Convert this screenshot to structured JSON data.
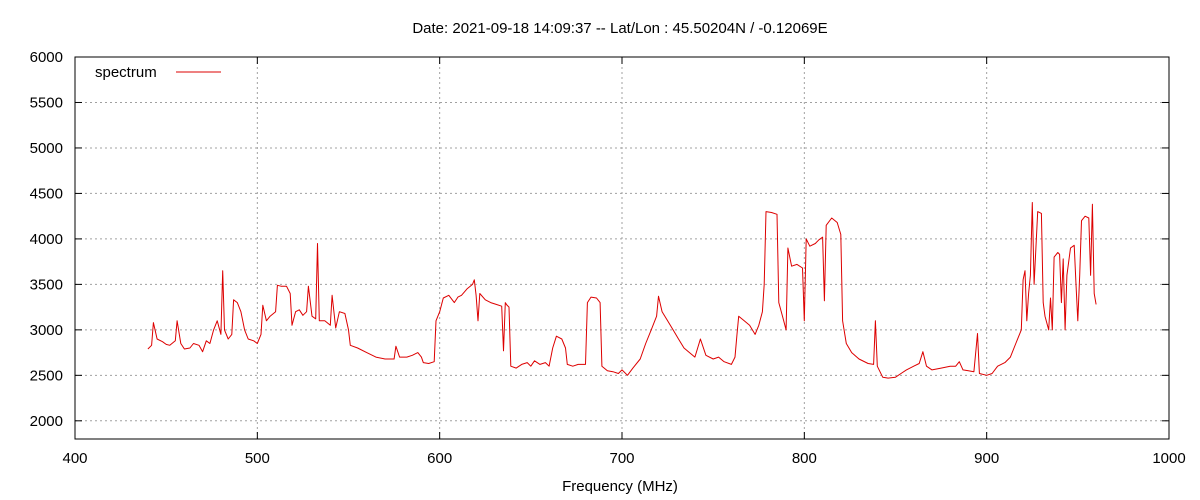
{
  "chart_data": {
    "type": "line",
    "title": "Date: 2021-09-18 14:09:37  --  Lat/Lon : 45.50204N / -0.12069E",
    "xlabel": "Frequency (MHz)",
    "ylabel": "",
    "xlim": [
      400,
      1000
    ],
    "ylim": [
      1800,
      6000
    ],
    "xticks": [
      400,
      500,
      600,
      700,
      800,
      900,
      1000
    ],
    "yticks": [
      2000,
      2500,
      3000,
      3500,
      4000,
      4500,
      5000,
      5500,
      6000
    ],
    "grid": true,
    "legend_position": "top-left",
    "series": [
      {
        "name": "spectrum",
        "color": "#dd0000",
        "points": [
          [
            440,
            2790
          ],
          [
            442,
            2830
          ],
          [
            443,
            3080
          ],
          [
            445,
            2900
          ],
          [
            448,
            2870
          ],
          [
            450,
            2840
          ],
          [
            452,
            2830
          ],
          [
            455,
            2880
          ],
          [
            456,
            3100
          ],
          [
            458,
            2850
          ],
          [
            460,
            2790
          ],
          [
            463,
            2800
          ],
          [
            465,
            2850
          ],
          [
            468,
            2830
          ],
          [
            470,
            2760
          ],
          [
            472,
            2880
          ],
          [
            474,
            2850
          ],
          [
            476,
            3000
          ],
          [
            478,
            3100
          ],
          [
            480,
            2950
          ],
          [
            481,
            3650
          ],
          [
            482,
            3000
          ],
          [
            484,
            2900
          ],
          [
            486,
            2950
          ],
          [
            487,
            3330
          ],
          [
            489,
            3300
          ],
          [
            491,
            3200
          ],
          [
            493,
            3000
          ],
          [
            495,
            2900
          ],
          [
            498,
            2880
          ],
          [
            500,
            2850
          ],
          [
            502,
            2950
          ],
          [
            503,
            3270
          ],
          [
            505,
            3100
          ],
          [
            507,
            3150
          ],
          [
            510,
            3200
          ],
          [
            511,
            3490
          ],
          [
            513,
            3480
          ],
          [
            516,
            3480
          ],
          [
            518,
            3400
          ],
          [
            519,
            3050
          ],
          [
            521,
            3200
          ],
          [
            523,
            3220
          ],
          [
            525,
            3160
          ],
          [
            527,
            3200
          ],
          [
            528,
            3480
          ],
          [
            530,
            3150
          ],
          [
            532,
            3120
          ],
          [
            533,
            3950
          ],
          [
            534,
            3100
          ],
          [
            537,
            3100
          ],
          [
            540,
            3050
          ],
          [
            541,
            3380
          ],
          [
            543,
            3020
          ],
          [
            545,
            3200
          ],
          [
            548,
            3180
          ],
          [
            550,
            3000
          ],
          [
            551,
            2830
          ],
          [
            555,
            2800
          ],
          [
            560,
            2750
          ],
          [
            565,
            2700
          ],
          [
            570,
            2680
          ],
          [
            575,
            2680
          ],
          [
            576,
            2820
          ],
          [
            578,
            2700
          ],
          [
            582,
            2700
          ],
          [
            585,
            2720
          ],
          [
            588,
            2750
          ],
          [
            590,
            2700
          ],
          [
            591,
            2640
          ],
          [
            594,
            2630
          ],
          [
            597,
            2650
          ],
          [
            598,
            3100
          ],
          [
            600,
            3200
          ],
          [
            602,
            3350
          ],
          [
            605,
            3380
          ],
          [
            608,
            3300
          ],
          [
            610,
            3360
          ],
          [
            612,
            3380
          ],
          [
            615,
            3450
          ],
          [
            618,
            3500
          ],
          [
            619,
            3550
          ],
          [
            620,
            3380
          ],
          [
            621,
            3100
          ],
          [
            622,
            3400
          ],
          [
            625,
            3330
          ],
          [
            628,
            3300
          ],
          [
            631,
            3280
          ],
          [
            634,
            3260
          ],
          [
            635,
            2770
          ],
          [
            636,
            3300
          ],
          [
            637,
            3270
          ],
          [
            638,
            3250
          ],
          [
            639,
            2600
          ],
          [
            642,
            2580
          ],
          [
            645,
            2620
          ],
          [
            648,
            2640
          ],
          [
            650,
            2600
          ],
          [
            652,
            2660
          ],
          [
            655,
            2620
          ],
          [
            658,
            2640
          ],
          [
            660,
            2600
          ],
          [
            662,
            2800
          ],
          [
            664,
            2930
          ],
          [
            667,
            2900
          ],
          [
            669,
            2800
          ],
          [
            670,
            2620
          ],
          [
            673,
            2600
          ],
          [
            676,
            2620
          ],
          [
            680,
            2620
          ],
          [
            681,
            3300
          ],
          [
            683,
            3360
          ],
          [
            686,
            3350
          ],
          [
            688,
            3300
          ],
          [
            689,
            2600
          ],
          [
            692,
            2550
          ],
          [
            695,
            2540
          ],
          [
            698,
            2520
          ],
          [
            700,
            2560
          ],
          [
            703,
            2500
          ],
          [
            706,
            2580
          ],
          [
            710,
            2680
          ],
          [
            713,
            2850
          ],
          [
            716,
            3000
          ],
          [
            719,
            3150
          ],
          [
            720,
            3370
          ],
          [
            722,
            3200
          ],
          [
            725,
            3100
          ],
          [
            728,
            3000
          ],
          [
            731,
            2900
          ],
          [
            734,
            2800
          ],
          [
            737,
            2750
          ],
          [
            740,
            2700
          ],
          [
            743,
            2900
          ],
          [
            746,
            2720
          ],
          [
            750,
            2680
          ],
          [
            753,
            2700
          ],
          [
            756,
            2650
          ],
          [
            760,
            2620
          ],
          [
            762,
            2700
          ],
          [
            763,
            2940
          ],
          [
            764,
            3150
          ],
          [
            767,
            3100
          ],
          [
            770,
            3050
          ],
          [
            773,
            2950
          ],
          [
            775,
            3050
          ],
          [
            777,
            3200
          ],
          [
            778,
            3500
          ],
          [
            779,
            4300
          ],
          [
            782,
            4290
          ],
          [
            785,
            4270
          ],
          [
            786,
            3300
          ],
          [
            788,
            3150
          ],
          [
            790,
            3000
          ],
          [
            791,
            3900
          ],
          [
            793,
            3700
          ],
          [
            796,
            3720
          ],
          [
            799,
            3680
          ],
          [
            800,
            3100
          ],
          [
            801,
            4000
          ],
          [
            803,
            3920
          ],
          [
            806,
            3950
          ],
          [
            808,
            3990
          ],
          [
            810,
            4020
          ],
          [
            811,
            3320
          ],
          [
            812,
            4150
          ],
          [
            815,
            4230
          ],
          [
            818,
            4180
          ],
          [
            820,
            4050
          ],
          [
            821,
            3100
          ],
          [
            823,
            2850
          ],
          [
            826,
            2750
          ],
          [
            830,
            2680
          ],
          [
            835,
            2630
          ],
          [
            838,
            2620
          ],
          [
            839,
            3100
          ],
          [
            840,
            2600
          ],
          [
            843,
            2480
          ],
          [
            846,
            2470
          ],
          [
            850,
            2480
          ],
          [
            853,
            2520
          ],
          [
            856,
            2560
          ],
          [
            860,
            2600
          ],
          [
            863,
            2630
          ],
          [
            865,
            2760
          ],
          [
            867,
            2600
          ],
          [
            870,
            2560
          ],
          [
            875,
            2580
          ],
          [
            880,
            2600
          ],
          [
            883,
            2600
          ],
          [
            885,
            2650
          ],
          [
            887,
            2560
          ],
          [
            890,
            2550
          ],
          [
            893,
            2540
          ],
          [
            895,
            2960
          ],
          [
            896,
            2520
          ],
          [
            900,
            2500
          ],
          [
            903,
            2520
          ],
          [
            906,
            2600
          ],
          [
            910,
            2640
          ],
          [
            913,
            2700
          ],
          [
            916,
            2850
          ],
          [
            919,
            3000
          ],
          [
            920,
            3550
          ],
          [
            921,
            3650
          ],
          [
            922,
            3100
          ],
          [
            923,
            3400
          ],
          [
            924,
            3600
          ],
          [
            925,
            4400
          ],
          [
            926,
            3500
          ],
          [
            927,
            3900
          ],
          [
            928,
            4300
          ],
          [
            930,
            4280
          ],
          [
            931,
            3300
          ],
          [
            932,
            3150
          ],
          [
            934,
            3000
          ],
          [
            935,
            3350
          ],
          [
            936,
            3000
          ],
          [
            937,
            3800
          ],
          [
            939,
            3850
          ],
          [
            940,
            3830
          ],
          [
            941,
            3300
          ],
          [
            942,
            3780
          ],
          [
            943,
            3000
          ],
          [
            944,
            3600
          ],
          [
            946,
            3900
          ],
          [
            948,
            3930
          ],
          [
            949,
            3500
          ],
          [
            950,
            3100
          ],
          [
            951,
            3600
          ],
          [
            952,
            4200
          ],
          [
            954,
            4250
          ],
          [
            956,
            4230
          ],
          [
            957,
            3600
          ],
          [
            958,
            4380
          ],
          [
            959,
            3400
          ],
          [
            960,
            3280
          ]
        ]
      }
    ]
  }
}
